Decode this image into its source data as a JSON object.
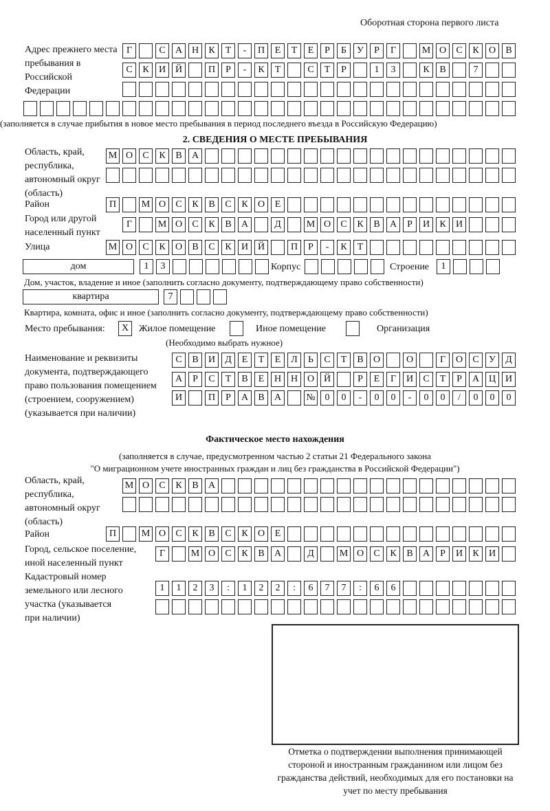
{
  "header": {
    "page_side": "Оборотная сторона первого листа"
  },
  "prev_address": {
    "label": "Адрес прежнего места пребывания в Российской Федерации",
    "rows": [
      [
        "Г",
        "",
        "С",
        "А",
        "Н",
        "К",
        "Т",
        "-",
        "П",
        "Е",
        "Т",
        "Е",
        "Р",
        "Б",
        "У",
        "Р",
        "Г",
        "",
        "М",
        "О",
        "С",
        "К",
        "О",
        "В"
      ],
      [
        "С",
        "К",
        "И",
        "Й",
        "",
        "П",
        "Р",
        "-",
        "К",
        "Т",
        "",
        "С",
        "Т",
        "Р",
        "",
        "1",
        "3",
        "",
        "К",
        "В",
        "",
        "7",
        "",
        ""
      ],
      [
        "",
        "",
        "",
        "",
        "",
        "",
        "",
        "",
        "",
        "",
        "",
        "",
        "",
        "",
        "",
        "",
        "",
        "",
        "",
        "",
        "",
        "",
        "",
        ""
      ],
      [
        "",
        "",
        "",
        "",
        "",
        "",
        "",
        "",
        "",
        "",
        "",
        "",
        "",
        "",
        "",
        "",
        "",
        "",
        "",
        "",
        "",
        "",
        "",
        "",
        "",
        "",
        "",
        "",
        "",
        ""
      ]
    ],
    "note": "(заполняется в случае прибытия в новое место пребывания в период последнего въезда в Российскую Федерацию)"
  },
  "section2": {
    "title": "2. СВЕДЕНИЯ О МЕСТЕ ПРЕБЫВАНИЯ",
    "region_label": "Область, край, республика, автономный округ (область)",
    "region_rows": [
      [
        "М",
        "О",
        "С",
        "К",
        "В",
        "А",
        "",
        "",
        "",
        "",
        "",
        "",
        "",
        "",
        "",
        "",
        "",
        "",
        "",
        "",
        "",
        "",
        "",
        "",
        ""
      ],
      [
        "",
        "",
        "",
        "",
        "",
        "",
        "",
        "",
        "",
        "",
        "",
        "",
        "",
        "",
        "",
        "",
        "",
        "",
        "",
        "",
        "",
        "",
        "",
        "",
        ""
      ]
    ],
    "district_label": "Район",
    "district": [
      "П",
      "",
      "М",
      "О",
      "С",
      "К",
      "В",
      "С",
      "К",
      "О",
      "Е",
      "",
      "",
      "",
      "",
      "",
      "",
      "",
      "",
      "",
      "",
      "",
      "",
      "",
      ""
    ],
    "city_label": "Город или другой населенный пункт",
    "city": [
      "Г",
      "",
      "М",
      "О",
      "С",
      "К",
      "В",
      "А",
      "",
      "Д",
      "",
      "М",
      "О",
      "С",
      "К",
      "В",
      "А",
      "Р",
      "И",
      "К",
      "И",
      "",
      "",
      ""
    ],
    "street_label": "Улица",
    "street": [
      "М",
      "О",
      "С",
      "К",
      "О",
      "В",
      "С",
      "К",
      "И",
      "Й",
      "",
      "П",
      "Р",
      "-",
      "К",
      "Т",
      "",
      "",
      "",
      "",
      "",
      "",
      "",
      "",
      ""
    ],
    "house_type": "дом",
    "house": [
      "1",
      "3",
      "",
      "",
      "",
      "",
      "",
      ""
    ],
    "korpus_label": "Корпус",
    "korpus": [
      "",
      "",
      "",
      "",
      ""
    ],
    "building_label": "Строение",
    "building": [
      "1",
      "",
      "",
      ""
    ],
    "house_note": "Дом, участок, владение и иное (заполнить согласно документу, подтверждающему право собственности)",
    "apt_type": "квартира",
    "apt": [
      "7",
      "",
      "",
      ""
    ],
    "apt_note": "Квартира, комната, офис и иное (заполнить согласно документу, подтверждающему право собственности)",
    "stay_label": "Место пребывания:",
    "stay_options": [
      {
        "label": "Жилое помещение",
        "mark": "X"
      },
      {
        "label": "Иное помещение",
        "mark": ""
      },
      {
        "label": "Организация",
        "mark": ""
      }
    ],
    "stay_note": "(Необходимо выбрать нужное)",
    "doc_label": "Наименование и реквизиты документа, подтверждающего право пользования помещением (строением, сооружением) (указывается при наличии)",
    "doc_rows": [
      [
        "С",
        "В",
        "И",
        "Д",
        "Е",
        "Т",
        "Е",
        "Л",
        "Ь",
        "С",
        "Т",
        "В",
        "О",
        "",
        "О",
        "",
        "Г",
        "О",
        "С",
        "У",
        "Д"
      ],
      [
        "А",
        "Р",
        "С",
        "Т",
        "В",
        "Е",
        "Н",
        "Н",
        "О",
        "Й",
        "",
        "Р",
        "Е",
        "Г",
        "И",
        "С",
        "Т",
        "Р",
        "А",
        "Ц",
        "И"
      ],
      [
        "И",
        "",
        "П",
        "Р",
        "А",
        "В",
        "А",
        "",
        "№",
        "0",
        "0",
        "-",
        "0",
        "0",
        "-",
        "0",
        "0",
        "/",
        "0",
        "0",
        "0"
      ]
    ]
  },
  "actual": {
    "title": "Фактическое место нахождения",
    "note1": "(заполняется в случае, предусмотренном частью 2 статьи 21 Федерального закона",
    "note2": "\"О миграционном учете иностранных граждан и лиц без гражданства в Российской Федерации\")",
    "region_label": "Область, край, республика, автономный округ (область)",
    "region_rows": [
      [
        "М",
        "О",
        "С",
        "К",
        "В",
        "А",
        "",
        "",
        "",
        "",
        "",
        "",
        "",
        "",
        "",
        "",
        "",
        "",
        "",
        "",
        "",
        "",
        "",
        ""
      ],
      [
        "",
        "",
        "",
        "",
        "",
        "",
        "",
        "",
        "",
        "",
        "",
        "",
        "",
        "",
        "",
        "",
        "",
        "",
        "",
        "",
        "",
        "",
        "",
        ""
      ]
    ],
    "district_label": "Район",
    "district": [
      "П",
      "",
      "М",
      "О",
      "С",
      "К",
      "В",
      "С",
      "К",
      "О",
      "Е",
      "",
      "",
      "",
      "",
      "",
      "",
      "",
      "",
      "",
      "",
      "",
      "",
      "",
      ""
    ],
    "city_label": "Город, сельское поселение, иной населенный пункт",
    "city": [
      "Г",
      "",
      "М",
      "О",
      "С",
      "К",
      "В",
      "А",
      "",
      "Д",
      "",
      "М",
      "О",
      "С",
      "К",
      "В",
      "А",
      "Р",
      "И",
      "К",
      "И",
      ""
    ],
    "cadastral_label": "Кадастровый номер земельного или лесного участка (указывается при наличии)",
    "cadastral_rows": [
      [
        "1",
        "1",
        "2",
        "3",
        ":",
        "1",
        "2",
        "2",
        ":",
        "6",
        "7",
        "7",
        ":",
        "6",
        "6",
        "",
        "",
        "",
        "",
        "",
        "",
        ""
      ],
      [
        "",
        "",
        "",
        "",
        "",
        "",
        "",
        "",
        "",
        "",
        "",
        "",
        "",
        "",
        "",
        "",
        "",
        "",
        "",
        "",
        "",
        ""
      ]
    ]
  },
  "confirmation": {
    "caption": "Отметка о подтверждении выполнения принимающей стороной и иностранным гражданином или лицом без гражданства действий, необходимых для его постановки на учет по месту пребывания"
  }
}
